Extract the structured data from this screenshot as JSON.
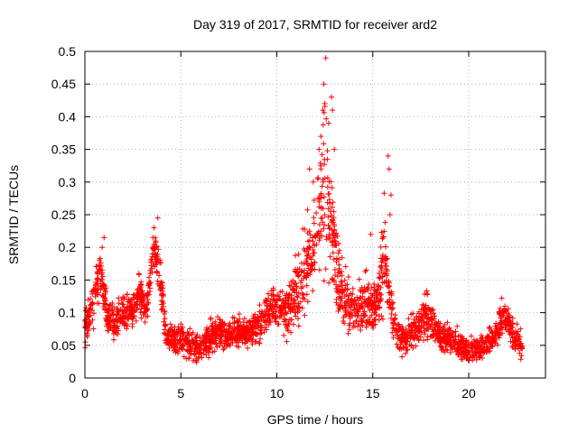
{
  "chart_data": {
    "type": "scatter",
    "title": "Day 319 of 2017, SRMTID for receiver ard2",
    "xlabel": "GPS time / hours",
    "ylabel": "SRMTID / TECUs",
    "xlim": [
      0,
      24
    ],
    "ylim": [
      0,
      0.5
    ],
    "grid": true,
    "legend": "none",
    "marker": "+",
    "marker_color": "#ff0000",
    "x_ticks": [
      "0",
      "5",
      "10",
      "15",
      "20"
    ],
    "x_tick_values": [
      0,
      5,
      10,
      15,
      20
    ],
    "y_ticks": [
      "0",
      "0.05",
      "0.1",
      "0.15",
      "0.2",
      "0.25",
      "0.3",
      "0.35",
      "0.4",
      "0.45",
      "0.5"
    ],
    "y_tick_values": [
      0,
      0.05,
      0.1,
      0.15,
      0.2,
      0.25,
      0.3,
      0.35,
      0.4,
      0.45,
      0.5
    ],
    "series": [
      {
        "name": "SRMTID",
        "profile": {
          "x": [
            0.0,
            0.3,
            0.6,
            0.9,
            1.2,
            1.5,
            2.0,
            2.5,
            2.8,
            3.2,
            3.6,
            3.9,
            4.2,
            4.6,
            5.0,
            5.5,
            6.0,
            6.5,
            7.0,
            7.5,
            8.0,
            8.5,
            9.0,
            9.5,
            9.8,
            10.2,
            10.6,
            11.0,
            11.4,
            11.8,
            12.2,
            12.5,
            12.8,
            13.1,
            13.4,
            13.8,
            14.2,
            14.6,
            15.0,
            15.3,
            15.6,
            15.9,
            16.2,
            16.6,
            17.0,
            17.5,
            17.8,
            18.2,
            18.6,
            19.0,
            19.5,
            20.0,
            20.5,
            21.0,
            21.5,
            21.8,
            22.1,
            22.4,
            22.8
          ],
          "y": [
            0.08,
            0.1,
            0.14,
            0.15,
            0.09,
            0.09,
            0.1,
            0.1,
            0.13,
            0.1,
            0.2,
            0.16,
            0.07,
            0.06,
            0.06,
            0.05,
            0.045,
            0.06,
            0.07,
            0.065,
            0.07,
            0.07,
            0.08,
            0.1,
            0.11,
            0.11,
            0.1,
            0.13,
            0.16,
            0.2,
            0.25,
            0.3,
            0.24,
            0.17,
            0.13,
            0.11,
            0.1,
            0.12,
            0.1,
            0.12,
            0.2,
            0.12,
            0.07,
            0.06,
            0.07,
            0.08,
            0.1,
            0.08,
            0.06,
            0.06,
            0.05,
            0.04,
            0.045,
            0.05,
            0.07,
            0.1,
            0.08,
            0.06,
            0.05
          ],
          "spread": [
            0.035,
            0.04,
            0.05,
            0.05,
            0.035,
            0.035,
            0.035,
            0.035,
            0.04,
            0.035,
            0.04,
            0.045,
            0.03,
            0.03,
            0.03,
            0.03,
            0.025,
            0.03,
            0.03,
            0.03,
            0.03,
            0.03,
            0.035,
            0.04,
            0.045,
            0.045,
            0.05,
            0.06,
            0.08,
            0.1,
            0.13,
            0.16,
            0.12,
            0.08,
            0.06,
            0.05,
            0.05,
            0.06,
            0.05,
            0.06,
            0.1,
            0.05,
            0.03,
            0.03,
            0.035,
            0.035,
            0.045,
            0.035,
            0.03,
            0.03,
            0.025,
            0.025,
            0.025,
            0.025,
            0.03,
            0.035,
            0.035,
            0.03,
            0.025
          ]
        },
        "point_count": 2600,
        "notable_points": [
          {
            "x": 12.55,
            "y": 0.49
          },
          {
            "x": 12.45,
            "y": 0.45
          },
          {
            "x": 12.85,
            "y": 0.43
          },
          {
            "x": 12.5,
            "y": 0.42
          },
          {
            "x": 12.4,
            "y": 0.41
          },
          {
            "x": 12.9,
            "y": 0.41
          },
          {
            "x": 12.7,
            "y": 0.39
          },
          {
            "x": 12.3,
            "y": 0.37
          },
          {
            "x": 13.0,
            "y": 0.35
          },
          {
            "x": 12.2,
            "y": 0.35
          },
          {
            "x": 15.8,
            "y": 0.34
          },
          {
            "x": 15.85,
            "y": 0.32
          },
          {
            "x": 12.3,
            "y": 0.32
          },
          {
            "x": 11.7,
            "y": 0.32
          },
          {
            "x": 11.9,
            "y": 0.3
          },
          {
            "x": 15.95,
            "y": 0.28
          },
          {
            "x": 3.8,
            "y": 0.245
          },
          {
            "x": 15.9,
            "y": 0.25
          },
          {
            "x": 3.6,
            "y": 0.23
          },
          {
            "x": 1.0,
            "y": 0.215
          },
          {
            "x": 14.9,
            "y": 0.22
          },
          {
            "x": 0.9,
            "y": 0.2
          }
        ]
      }
    ]
  }
}
